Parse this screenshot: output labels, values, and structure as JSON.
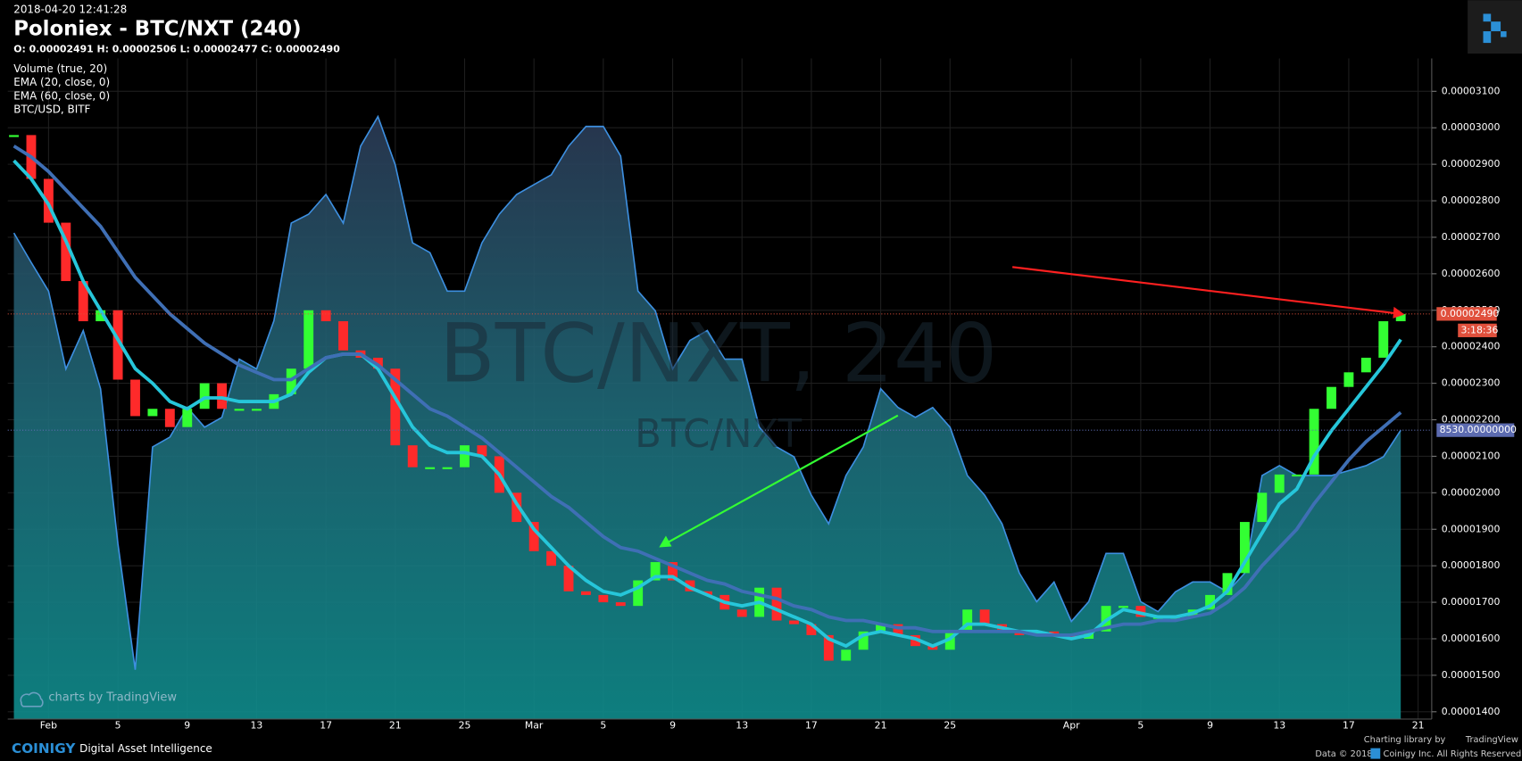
{
  "header": {
    "timestamp": "2018-04-20 12:41:28",
    "title": "Poloniex - BTC/NXT (240)",
    "ohlc": "O: 0.00002491 H: 0.00002506 L: 0.00002477 C: 0.00002490"
  },
  "footer": {
    "brand": "COINIGY",
    "tagline": "Digital Asset Intelligence",
    "charting_by": "Charting library by",
    "charting_brand": "TradingView",
    "copyright_year": "Data © 2018",
    "copyright_owner": "Coinigy Inc. All Rights Reserved.",
    "chart_credit": "charts by TradingView"
  },
  "chart_data": {
    "type": "line",
    "watermark": "BTC/NXT, 240",
    "volume_label": "Volume (true, 20)",
    "categories": [
      null,
      null,
      "Feb",
      null,
      null,
      null,
      "5",
      null,
      null,
      null,
      "9",
      null,
      null,
      null,
      "13",
      null,
      null,
      null,
      "17",
      null,
      null,
      null,
      "21",
      null,
      null,
      null,
      "25",
      null,
      null,
      null,
      "Mar",
      null,
      null,
      null,
      "5",
      null,
      null,
      null,
      "9",
      null,
      null,
      null,
      "13",
      null,
      null,
      null,
      "17",
      null,
      null,
      null,
      "21",
      null,
      null,
      null,
      "25",
      null,
      null,
      null,
      null,
      null,
      null,
      "Apr",
      null,
      null,
      null,
      "5",
      null,
      null,
      null,
      "9",
      null,
      null,
      null,
      "13",
      null,
      null,
      null,
      "17",
      null,
      null,
      null,
      "21"
    ],
    "series": [
      {
        "name": "BTC/NXT",
        "style": "bars",
        "up_color": "#33ff33",
        "down_color": "#ff2a2a",
        "values": [
          2.98e-05,
          2.86e-05,
          2.74e-05,
          2.58e-05,
          2.47e-05,
          2.5e-05,
          2.31e-05,
          2.21e-05,
          2.23e-05,
          2.18e-05,
          2.23e-05,
          2.3e-05,
          2.23e-05,
          2.23e-05,
          2.23e-05,
          2.27e-05,
          2.34e-05,
          2.5e-05,
          2.47e-05,
          2.39e-05,
          2.37e-05,
          2.34e-05,
          2.13e-05,
          2.07e-05,
          2.07e-05,
          2.07e-05,
          2.13e-05,
          2.1e-05,
          2e-05,
          1.92e-05,
          1.84e-05,
          1.8e-05,
          1.73e-05,
          1.72e-05,
          1.7e-05,
          1.69e-05,
          1.76e-05,
          1.81e-05,
          1.76e-05,
          1.73e-05,
          1.72e-05,
          1.68e-05,
          1.66e-05,
          1.74e-05,
          1.65e-05,
          1.64e-05,
          1.61e-05,
          1.54e-05,
          1.57e-05,
          1.62e-05,
          1.64e-05,
          1.61e-05,
          1.58e-05,
          1.57e-05,
          1.62e-05,
          1.68e-05,
          1.64e-05,
          1.62e-05,
          1.61e-05,
          1.62e-05,
          1.61e-05,
          1.6e-05,
          1.62e-05,
          1.69e-05,
          1.69e-05,
          1.66e-05,
          1.66e-05,
          1.66e-05,
          1.68e-05,
          1.72e-05,
          1.78e-05,
          1.92e-05,
          2e-05,
          2.05e-05,
          2.05e-05,
          2.23e-05,
          2.29e-05,
          2.33e-05,
          2.37e-05,
          2.47e-05,
          2.49e-05,
          null
        ]
      },
      {
        "name": "EMA (20, close, 0)",
        "style": "line",
        "color": "#26c6da",
        "values": [
          2.91e-05,
          2.86e-05,
          2.79e-05,
          2.69e-05,
          2.58e-05,
          2.5e-05,
          2.42e-05,
          2.34e-05,
          2.3e-05,
          2.25e-05,
          2.23e-05,
          2.26e-05,
          2.26e-05,
          2.25e-05,
          2.25e-05,
          2.25e-05,
          2.27e-05,
          2.33e-05,
          2.37e-05,
          2.38e-05,
          2.38e-05,
          2.34e-05,
          2.26e-05,
          2.18e-05,
          2.13e-05,
          2.11e-05,
          2.11e-05,
          2.1e-05,
          2.05e-05,
          1.97e-05,
          1.9e-05,
          1.85e-05,
          1.8e-05,
          1.76e-05,
          1.73e-05,
          1.72e-05,
          1.74e-05,
          1.77e-05,
          1.77e-05,
          1.74e-05,
          1.72e-05,
          1.7e-05,
          1.69e-05,
          1.7e-05,
          1.68e-05,
          1.66e-05,
          1.64e-05,
          1.6e-05,
          1.58e-05,
          1.61e-05,
          1.62e-05,
          1.61e-05,
          1.6e-05,
          1.58e-05,
          1.6e-05,
          1.64e-05,
          1.64e-05,
          1.63e-05,
          1.62e-05,
          1.62e-05,
          1.61e-05,
          1.6e-05,
          1.61e-05,
          1.65e-05,
          1.68e-05,
          1.67e-05,
          1.66e-05,
          1.66e-05,
          1.67e-05,
          1.69e-05,
          1.73e-05,
          1.81e-05,
          1.89e-05,
          1.97e-05,
          2.01e-05,
          2.1e-05,
          2.17e-05,
          2.23e-05,
          2.29e-05,
          2.35e-05,
          2.42e-05,
          null
        ]
      },
      {
        "name": "EMA (60, close, 0)",
        "style": "line",
        "color": "#3f6fb5",
        "values": [
          2.95e-05,
          2.92e-05,
          2.88e-05,
          2.83e-05,
          2.78e-05,
          2.73e-05,
          2.66e-05,
          2.59e-05,
          2.54e-05,
          2.49e-05,
          2.45e-05,
          2.41e-05,
          2.38e-05,
          2.35e-05,
          2.33e-05,
          2.31e-05,
          2.31e-05,
          2.34e-05,
          2.37e-05,
          2.38e-05,
          2.38e-05,
          2.35e-05,
          2.31e-05,
          2.27e-05,
          2.23e-05,
          2.21e-05,
          2.18e-05,
          2.15e-05,
          2.11e-05,
          2.07e-05,
          2.03e-05,
          1.99e-05,
          1.96e-05,
          1.92e-05,
          1.88e-05,
          1.85e-05,
          1.84e-05,
          1.82e-05,
          1.8e-05,
          1.78e-05,
          1.76e-05,
          1.75e-05,
          1.73e-05,
          1.72e-05,
          1.71e-05,
          1.69e-05,
          1.68e-05,
          1.66e-05,
          1.65e-05,
          1.65e-05,
          1.64e-05,
          1.63e-05,
          1.63e-05,
          1.62e-05,
          1.62e-05,
          1.62e-05,
          1.62e-05,
          1.62e-05,
          1.62e-05,
          1.61e-05,
          1.61e-05,
          1.61e-05,
          1.62e-05,
          1.63e-05,
          1.64e-05,
          1.64e-05,
          1.65e-05,
          1.65e-05,
          1.66e-05,
          1.67e-05,
          1.7e-05,
          1.74e-05,
          1.8e-05,
          1.85e-05,
          1.9e-05,
          1.97e-05,
          2.03e-05,
          2.09e-05,
          2.14e-05,
          2.18e-05,
          2.22e-05,
          null
        ]
      },
      {
        "name": "BTC/USD, BITF",
        "style": "area",
        "axis": "y2",
        "color": "#3d8fe0",
        "values": [
          10530,
          10230,
          9940,
          9150,
          9540,
          8950,
          7380,
          6100,
          8360,
          8460,
          8760,
          8560,
          8660,
          9250,
          9150,
          9640,
          10630,
          10720,
          10920,
          10630,
          11410,
          11710,
          11220,
          10430,
          10330,
          9940,
          9940,
          10430,
          10720,
          10920,
          11020,
          11120,
          11410,
          11610,
          11610,
          11310,
          9940,
          9740,
          9150,
          9440,
          9540,
          9250,
          9250,
          8560,
          8360,
          8260,
          7870,
          7580,
          8070,
          8360,
          8950,
          8760,
          8660,
          8760,
          8560,
          8070,
          7870,
          7580,
          7080,
          6790,
          6990,
          6590,
          6790,
          7280,
          7280,
          6790,
          6690,
          6890,
          6990,
          6990,
          6890,
          7080,
          8070,
          8170,
          8070,
          8070,
          8070,
          8120,
          8170,
          8260,
          8530,
          null
        ]
      }
    ],
    "ylim": [
      1.38e-05,
      3.19e-05
    ],
    "yticks": [
      {
        "value": 1.4e-05,
        "label": "0.00001400"
      },
      {
        "value": 1.5e-05,
        "label": "0.00001500"
      },
      {
        "value": 1.6e-05,
        "label": "0.00001600"
      },
      {
        "value": 1.7e-05,
        "label": "0.00001700"
      },
      {
        "value": 1.8e-05,
        "label": "0.00001800"
      },
      {
        "value": 1.9e-05,
        "label": "0.00001900"
      },
      {
        "value": 2e-05,
        "label": "0.00002000"
      },
      {
        "value": 2.1e-05,
        "label": "0.00002100"
      },
      {
        "value": 2.2e-05,
        "label": "0.00002200"
      },
      {
        "value": 2.3e-05,
        "label": "0.00002300"
      },
      {
        "value": 2.4e-05,
        "label": "0.00002400"
      },
      {
        "value": 2.5e-05,
        "label": "0.00002500"
      },
      {
        "value": 2.6e-05,
        "label": "0.00002600"
      },
      {
        "value": 2.7e-05,
        "label": "0.00002700"
      },
      {
        "value": 2.8e-05,
        "label": "0.00002800"
      },
      {
        "value": 2.9e-05,
        "label": "0.00002900"
      },
      {
        "value": 3e-05,
        "label": "0.00003000"
      },
      {
        "value": 3.1e-05,
        "label": "0.00003100"
      }
    ],
    "y2lim": [
      5600,
      12300
    ],
    "last_price": {
      "value": 2.49e-05,
      "label": "0.00002490",
      "color": "#e0503c"
    },
    "countdown": "3:18:36",
    "last_y2": {
      "value": 8530,
      "label": "8530.00000000",
      "color": "#5c6bb0"
    },
    "grid": true
  }
}
